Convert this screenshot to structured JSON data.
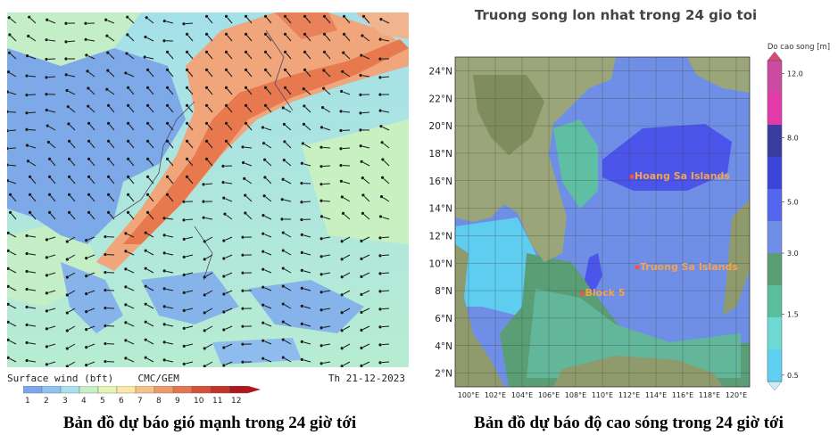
{
  "left_panel": {
    "legend_label": "Surface wind (bft)",
    "model": "CMC/GEM",
    "date": "Th 21-12-2023",
    "scale_colors": [
      "#7aa7ee",
      "#8fc3f2",
      "#a8e0f0",
      "#c8f0c8",
      "#e6f5b4",
      "#fde8a8",
      "#f7c088",
      "#ef9a6c",
      "#e6744e",
      "#d9503a",
      "#c73228",
      "#b0161a"
    ],
    "scale_ticks": [
      "1",
      "2",
      "3",
      "4",
      "5",
      "6",
      "7",
      "8",
      "9",
      "10",
      "11",
      "12"
    ],
    "caption": "Bản đồ dự báo gió mạnh trong 24 giờ tới"
  },
  "right_panel": {
    "title": "Truong song lon nhat trong 24 gio toi",
    "lat_labels": [
      "24°N",
      "22°N",
      "20°N",
      "18°N",
      "16°N",
      "14°N",
      "12°N",
      "10°N",
      "8°N",
      "6°N",
      "4°N",
      "2°N"
    ],
    "lon_labels": [
      "100°E",
      "102°E",
      "104°E",
      "106°E",
      "108°E",
      "110°E",
      "112°E",
      "114°E",
      "116°E",
      "118°E",
      "120°E"
    ],
    "places": [
      {
        "name": "Hoang Sa Islands",
        "lon": 112.2,
        "lat": 16.3
      },
      {
        "name": "Truong Sa Islands",
        "lon": 112.6,
        "lat": 9.7
      },
      {
        "name": "Block 5",
        "lon": 108.5,
        "lat": 7.8
      }
    ],
    "colorbar": {
      "title": "Do cao song [m]",
      "ticks": [
        "12.0",
        "8.0",
        "5.0",
        "3.0",
        "1.5",
        "0.5"
      ],
      "colors": [
        "#5ed0f0",
        "#6fdad4",
        "#5bbf9e",
        "#5a9e76",
        "#6f8fe6",
        "#5566ee",
        "#3c44d8",
        "#3a3c9e",
        "#e23aa8",
        "#cc4aa0"
      ]
    },
    "caption": "Bản đồ dự báo độ cao sóng trong 24 giờ tới"
  }
}
